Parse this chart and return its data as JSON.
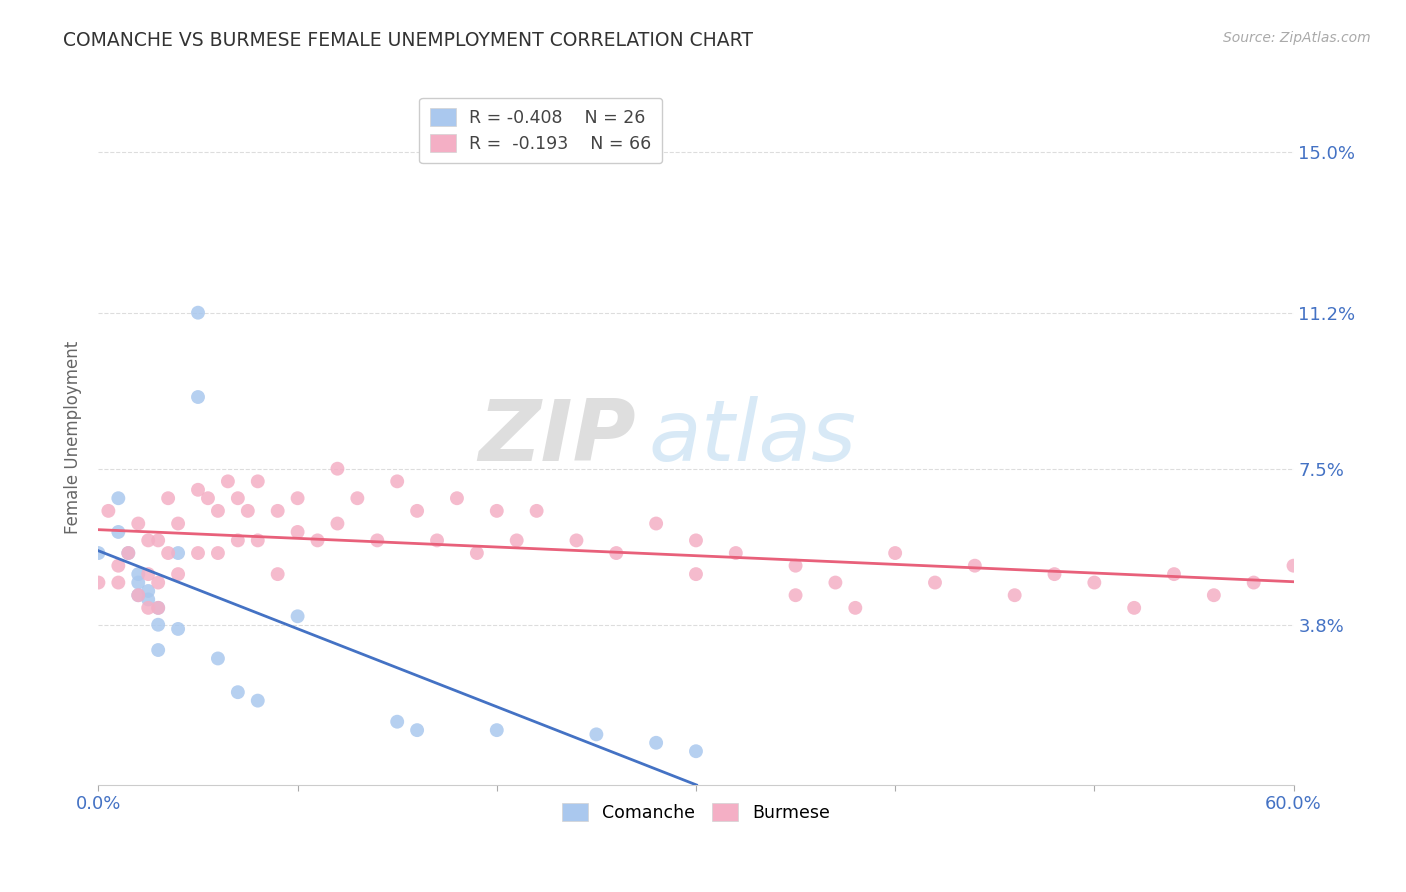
{
  "title": "COMANCHE VS BURMESE FEMALE UNEMPLOYMENT CORRELATION CHART",
  "source": "Source: ZipAtlas.com",
  "ylabel": "Female Unemployment",
  "xlim": [
    0.0,
    0.6
  ],
  "ylim": [
    0.0,
    0.165
  ],
  "yticks": [
    0.038,
    0.075,
    0.112,
    0.15
  ],
  "ytick_labels": [
    "3.8%",
    "7.5%",
    "11.2%",
    "15.0%"
  ],
  "xticks": [
    0.0,
    0.1,
    0.2,
    0.3,
    0.4,
    0.5,
    0.6
  ],
  "xtick_labels": [
    "0.0%",
    "",
    "",
    "",
    "",
    "",
    "60.0%"
  ],
  "comanche_color": "#aac8ee",
  "burmese_color": "#f4afc5",
  "comanche_line_color": "#4472c4",
  "burmese_line_color": "#e8607a",
  "R_comanche": -0.408,
  "N_comanche": 26,
  "R_burmese": -0.193,
  "N_burmese": 66,
  "comanche_x": [
    0.0,
    0.01,
    0.01,
    0.015,
    0.02,
    0.02,
    0.02,
    0.025,
    0.025,
    0.03,
    0.03,
    0.03,
    0.04,
    0.04,
    0.05,
    0.05,
    0.06,
    0.07,
    0.08,
    0.1,
    0.15,
    0.16,
    0.2,
    0.25,
    0.28,
    0.3
  ],
  "comanche_y": [
    0.055,
    0.068,
    0.06,
    0.055,
    0.05,
    0.048,
    0.045,
    0.046,
    0.044,
    0.042,
    0.038,
    0.032,
    0.037,
    0.055,
    0.112,
    0.092,
    0.03,
    0.022,
    0.02,
    0.04,
    0.015,
    0.013,
    0.013,
    0.012,
    0.01,
    0.008
  ],
  "burmese_x": [
    0.0,
    0.005,
    0.01,
    0.01,
    0.015,
    0.02,
    0.02,
    0.025,
    0.025,
    0.025,
    0.03,
    0.03,
    0.03,
    0.035,
    0.035,
    0.04,
    0.04,
    0.05,
    0.05,
    0.055,
    0.06,
    0.06,
    0.065,
    0.07,
    0.07,
    0.075,
    0.08,
    0.08,
    0.09,
    0.09,
    0.1,
    0.1,
    0.11,
    0.12,
    0.12,
    0.13,
    0.14,
    0.15,
    0.16,
    0.17,
    0.18,
    0.19,
    0.2,
    0.21,
    0.22,
    0.24,
    0.26,
    0.28,
    0.3,
    0.3,
    0.32,
    0.35,
    0.35,
    0.37,
    0.38,
    0.4,
    0.42,
    0.44,
    0.46,
    0.48,
    0.5,
    0.52,
    0.54,
    0.56,
    0.58,
    0.6
  ],
  "burmese_y": [
    0.048,
    0.065,
    0.052,
    0.048,
    0.055,
    0.062,
    0.045,
    0.058,
    0.05,
    0.042,
    0.058,
    0.048,
    0.042,
    0.068,
    0.055,
    0.062,
    0.05,
    0.07,
    0.055,
    0.068,
    0.065,
    0.055,
    0.072,
    0.068,
    0.058,
    0.065,
    0.072,
    0.058,
    0.065,
    0.05,
    0.068,
    0.06,
    0.058,
    0.075,
    0.062,
    0.068,
    0.058,
    0.072,
    0.065,
    0.058,
    0.068,
    0.055,
    0.065,
    0.058,
    0.065,
    0.058,
    0.055,
    0.062,
    0.058,
    0.05,
    0.055,
    0.052,
    0.045,
    0.048,
    0.042,
    0.055,
    0.048,
    0.052,
    0.045,
    0.05,
    0.048,
    0.042,
    0.05,
    0.045,
    0.048,
    0.052
  ],
  "background_color": "#ffffff",
  "grid_color": "#dddddd",
  "title_color": "#333333",
  "axis_label_color": "#666666",
  "ytick_color": "#4472c4",
  "watermark_zip": "ZIP",
  "watermark_atlas": "atlas",
  "marker_size": 100
}
